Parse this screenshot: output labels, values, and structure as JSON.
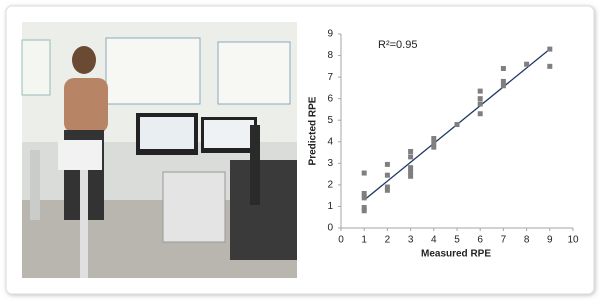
{
  "chart_data": {
    "type": "scatter",
    "x_label": "Measured RPE",
    "y_label": "Predicted RPE",
    "annotation": "R²=0.95",
    "x": [
      1,
      1,
      1,
      1,
      1,
      2,
      2,
      2,
      2,
      3,
      3,
      3,
      3,
      3,
      4,
      4,
      4,
      5,
      6,
      6,
      6,
      6,
      7,
      7,
      7,
      8,
      9,
      9
    ],
    "values": [
      2.55,
      1.6,
      1.4,
      0.95,
      0.8,
      2.95,
      2.45,
      1.9,
      1.75,
      3.55,
      3.3,
      2.8,
      2.6,
      2.4,
      4.15,
      3.95,
      3.75,
      4.8,
      6.35,
      6.0,
      5.75,
      5.3,
      7.4,
      6.8,
      6.6,
      7.6,
      8.3,
      7.5
    ],
    "color": "#7f7f7f",
    "trendline": {
      "x": [
        1,
        9
      ],
      "y": [
        1.3,
        8.3
      ],
      "color": "#1f3864"
    },
    "xlim": [
      0,
      10
    ],
    "xticks": [
      0,
      1,
      2,
      3,
      4,
      5,
      6,
      7,
      8,
      9,
      10
    ],
    "ylim": [
      0,
      9
    ],
    "yticks": [
      0,
      1,
      2,
      3,
      4,
      5,
      6,
      7,
      8,
      9
    ]
  }
}
